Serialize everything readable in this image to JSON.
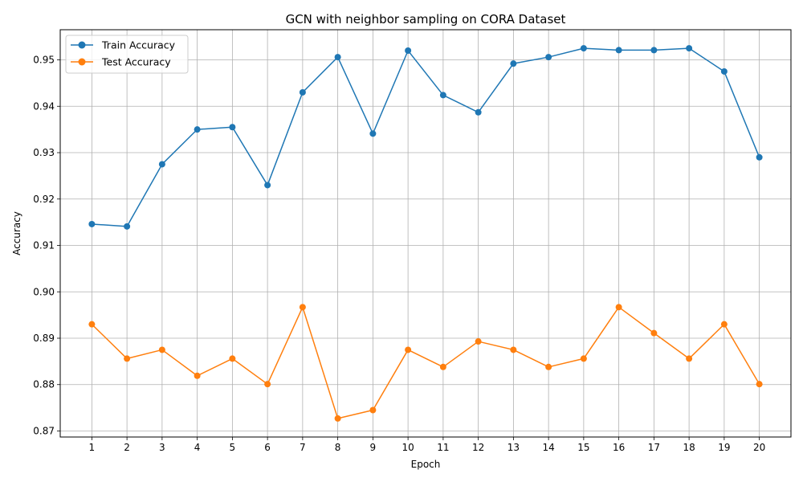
{
  "chart_data": {
    "type": "line",
    "title": "GCN with neighbor sampling on CORA Dataset",
    "xlabel": "Epoch",
    "ylabel": "Accuracy",
    "grid": true,
    "legend_position": "top-left",
    "x": [
      1,
      2,
      3,
      4,
      5,
      6,
      7,
      8,
      9,
      10,
      11,
      12,
      13,
      14,
      15,
      16,
      17,
      18,
      19,
      20
    ],
    "xlim": [
      0.1,
      20.9
    ],
    "ylim": [
      0.8687,
      0.9565
    ],
    "yticks": [
      0.87,
      0.88,
      0.89,
      0.9,
      0.91,
      0.92,
      0.93,
      0.94,
      0.95
    ],
    "ytick_labels": [
      "0.87",
      "0.88",
      "0.89",
      "0.90",
      "0.91",
      "0.92",
      "0.93",
      "0.94",
      "0.95"
    ],
    "xtick_labels": [
      "1",
      "2",
      "3",
      "4",
      "5",
      "6",
      "7",
      "8",
      "9",
      "10",
      "11",
      "12",
      "13",
      "14",
      "15",
      "16",
      "17",
      "18",
      "19",
      "20"
    ],
    "series": [
      {
        "name": "Train Accuracy",
        "color": "#1f77b4",
        "values": [
          0.9146,
          0.9141,
          0.9275,
          0.935,
          0.9355,
          0.923,
          0.943,
          0.9506,
          0.9341,
          0.952,
          0.9424,
          0.9387,
          0.9492,
          0.9506,
          0.9525,
          0.9521,
          0.9521,
          0.9525,
          0.9475,
          0.929
        ]
      },
      {
        "name": "Test Accuracy",
        "color": "#ff7f0e",
        "values": [
          0.893,
          0.8856,
          0.8875,
          0.8819,
          0.8856,
          0.8801,
          0.8967,
          0.8727,
          0.8745,
          0.8875,
          0.8838,
          0.8893,
          0.8875,
          0.8838,
          0.8856,
          0.8967,
          0.8911,
          0.8856,
          0.893,
          0.8801
        ]
      }
    ]
  }
}
